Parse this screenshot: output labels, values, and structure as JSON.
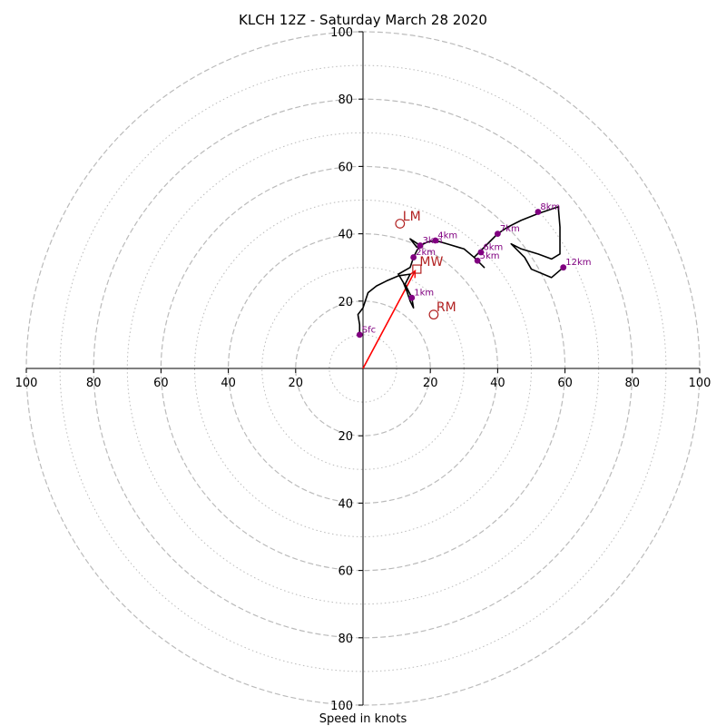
{
  "chart_data": {
    "type": "hodograph",
    "title": "KLCH 12Z - Saturday March 28 2020",
    "xlabel": "Speed in knots",
    "range": [
      -100,
      100
    ],
    "major_rings": [
      20,
      40,
      60,
      80,
      100
    ],
    "minor_rings": [
      10,
      30,
      50,
      70,
      90
    ],
    "axis_ticks": [
      {
        "value": 100,
        "label": "100"
      },
      {
        "value": 80,
        "label": "80"
      },
      {
        "value": 60,
        "label": "60"
      },
      {
        "value": 40,
        "label": "40"
      },
      {
        "value": 20,
        "label": "20"
      },
      {
        "value": -20,
        "label": "20"
      },
      {
        "value": -40,
        "label": "40"
      },
      {
        "value": -60,
        "label": "60"
      },
      {
        "value": -80,
        "label": "80"
      },
      {
        "value": -100,
        "label": "100"
      }
    ],
    "line_color": "#000000",
    "marker_color": "#800080",
    "motion_color": "#b22222",
    "shear_color": "#ff0000",
    "ring_color": "#bbbbbb",
    "trace": [
      [
        -1,
        10
      ],
      [
        -1,
        13
      ],
      [
        -1.5,
        16
      ],
      [
        0,
        18
      ],
      [
        1.5,
        22.5
      ],
      [
        4,
        24.5
      ],
      [
        7,
        26
      ],
      [
        10.5,
        27.5
      ],
      [
        14,
        28
      ],
      [
        12.5,
        25
      ],
      [
        13.5,
        23
      ],
      [
        14.5,
        21
      ],
      [
        15,
        18
      ],
      [
        14,
        20
      ],
      [
        13,
        23
      ],
      [
        12,
        25.5
      ],
      [
        10.5,
        28
      ],
      [
        14,
        30
      ],
      [
        15,
        33
      ],
      [
        16,
        35
      ],
      [
        17,
        36.5
      ],
      [
        14,
        38.5
      ],
      [
        16,
        36
      ],
      [
        19,
        37.5
      ],
      [
        21.5,
        38
      ],
      [
        25,
        37
      ],
      [
        30,
        35.5
      ],
      [
        33,
        33
      ],
      [
        36,
        30
      ],
      [
        33,
        33
      ],
      [
        35,
        35
      ],
      [
        37.5,
        37.5
      ],
      [
        40,
        40
      ],
      [
        43,
        42
      ],
      [
        47,
        44
      ],
      [
        52,
        46
      ],
      [
        58,
        48
      ],
      [
        58.5,
        42
      ],
      [
        58.5,
        34
      ],
      [
        56,
        32.5
      ],
      [
        52,
        34
      ],
      [
        47,
        35.5
      ],
      [
        44,
        37
      ],
      [
        46,
        35
      ],
      [
        48,
        33
      ],
      [
        50,
        29.5
      ],
      [
        56,
        27
      ],
      [
        59.5,
        30
      ]
    ],
    "heights": [
      {
        "label": "Sfc",
        "u": -1,
        "v": 10
      },
      {
        "label": "1km",
        "u": 14.5,
        "v": 21
      },
      {
        "label": "2km",
        "u": 15,
        "v": 33
      },
      {
        "label": "3km",
        "u": 17,
        "v": 36.5
      },
      {
        "label": "4km",
        "u": 21.5,
        "v": 38
      },
      {
        "label": "5km",
        "u": 34,
        "v": 32
      },
      {
        "label": "6km",
        "u": 35,
        "v": 34.5
      },
      {
        "label": "7km",
        "u": 40,
        "v": 40
      },
      {
        "label": "8km",
        "u": 52,
        "v": 46.5
      },
      {
        "label": "12km",
        "u": 59.5,
        "v": 30
      }
    ],
    "motions": [
      {
        "label": "LM",
        "u": 11,
        "v": 43,
        "marker": "circle"
      },
      {
        "label": "MW",
        "u": 16,
        "v": 29.5,
        "marker": "square"
      },
      {
        "label": "RM",
        "u": 21,
        "v": 16,
        "marker": "circle"
      }
    ],
    "shear_vector": {
      "from": [
        0,
        0
      ],
      "to": [
        15.5,
        29
      ]
    }
  }
}
